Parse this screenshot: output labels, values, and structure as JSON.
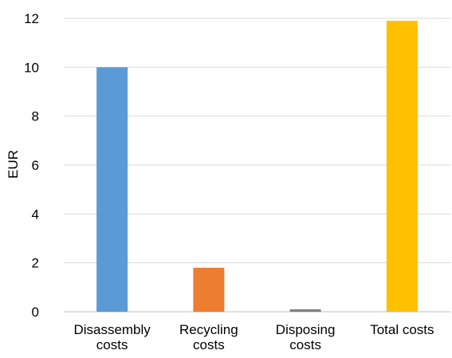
{
  "chart_data": {
    "type": "bar",
    "categories": [
      [
        "Disassembly",
        "costs"
      ],
      [
        "Recycling",
        "costs"
      ],
      [
        "Disposing",
        "costs"
      ],
      [
        "Total costs"
      ]
    ],
    "values": [
      10.0,
      1.8,
      0.1,
      11.9
    ],
    "colors": [
      "#5B9BD5",
      "#ED7D31",
      "#7F7F7F",
      "#FFC000"
    ],
    "ylabel": "EUR",
    "ylim": [
      0,
      12
    ],
    "yticks": [
      0,
      2,
      4,
      6,
      8,
      10,
      12
    ],
    "grid": true,
    "legend": "none"
  }
}
